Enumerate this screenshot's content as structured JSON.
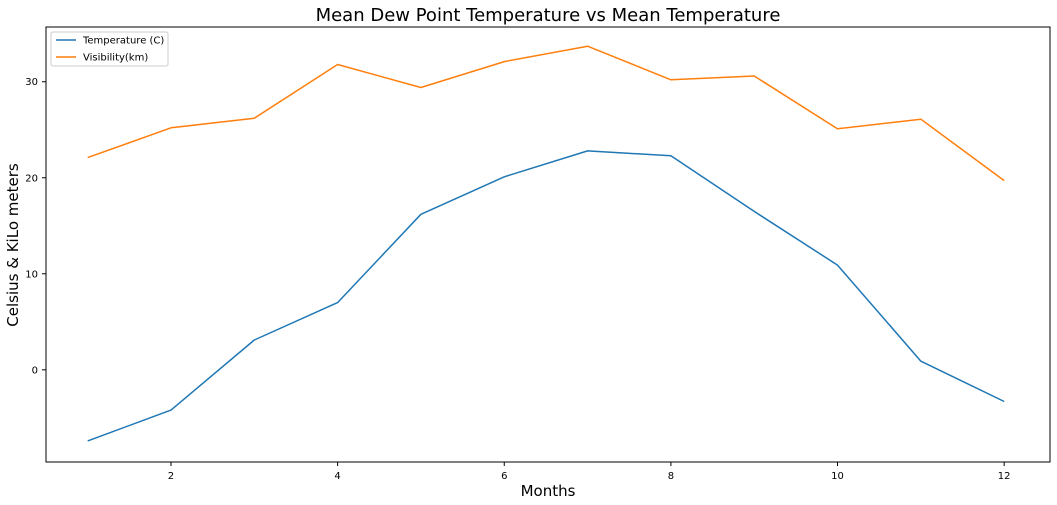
{
  "chart_data": {
    "type": "line",
    "title": "Mean Dew Point Temperature vs Mean Temperature",
    "xlabel": "Months",
    "ylabel": "Celsius & KiLo meters",
    "x": [
      1,
      2,
      3,
      4,
      5,
      6,
      7,
      8,
      9,
      10,
      11,
      12
    ],
    "xlim": [
      0.5,
      12.55
    ],
    "ylim": [
      -9.6,
      35.7
    ],
    "xticks": [
      2,
      4,
      6,
      8,
      10,
      12
    ],
    "yticks": [
      0,
      10,
      20,
      30
    ],
    "grid": false,
    "legend_position": "top-left",
    "series": [
      {
        "name": "Temperature (C)",
        "color": "#1f77b4",
        "values": [
          -7.4,
          -4.2,
          3.1,
          7.0,
          16.2,
          20.1,
          22.8,
          22.3,
          16.5,
          10.9,
          0.9,
          -3.3
        ]
      },
      {
        "name": "Visibility(km)",
        "color": "#ff7f0e",
        "values": [
          22.1,
          25.2,
          26.2,
          31.8,
          29.4,
          32.1,
          33.7,
          30.2,
          30.6,
          25.1,
          26.1,
          19.7
        ]
      }
    ]
  }
}
